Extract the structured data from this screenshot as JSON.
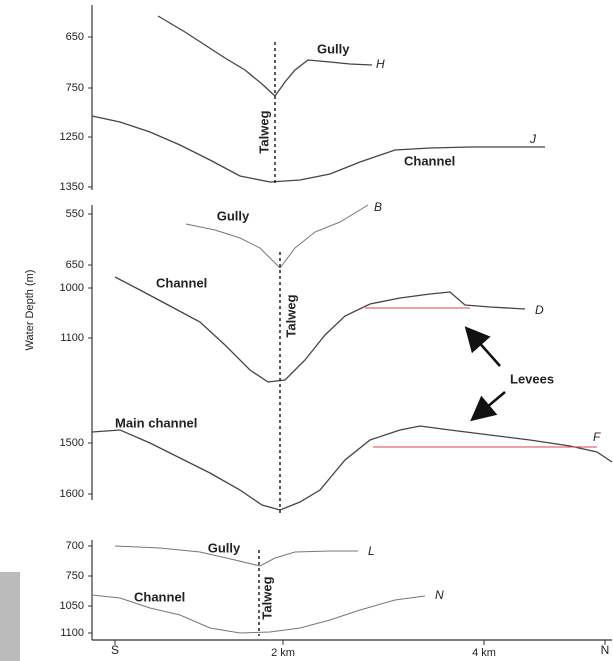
{
  "axis": {
    "label": "Water Depth (m)",
    "x_labels": [
      "S",
      "2 km",
      "4 km",
      "N"
    ],
    "panel1_ticks": [
      "650",
      "750",
      "1250",
      "1350"
    ],
    "panel2_ticks": [
      "550",
      "650",
      "1000",
      "1100",
      "1500",
      "1600"
    ],
    "panel3_ticks": [
      "700",
      "750",
      "1050",
      "1100"
    ]
  },
  "panel1": {
    "gully": "Gully",
    "h": "H",
    "talweg": "Talweg",
    "j": "J",
    "channel": "Channel"
  },
  "panel2": {
    "gully": "Gully",
    "b": "B",
    "channel": "Channel",
    "talweg": "Talweg",
    "d": "D",
    "levees": "Levees",
    "main_channel": "Main channel",
    "f": "F"
  },
  "panel3": {
    "gully": "Gully",
    "l": "L",
    "channel": "Channel",
    "talweg": "Talweg",
    "n": "N"
  }
}
